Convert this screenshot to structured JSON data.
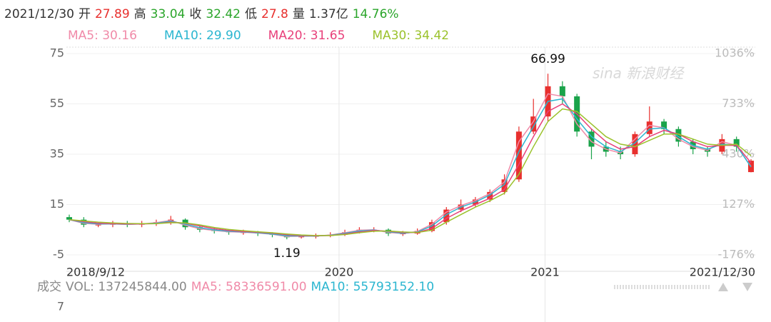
{
  "header": [
    {
      "text": "2021/12/30",
      "color": "#333333"
    },
    {
      "text": "开",
      "color": "#333333"
    },
    {
      "text": 27.89,
      "color": "#e8302e"
    },
    {
      "text": "高",
      "color": "#333333"
    },
    {
      "text": 33.04,
      "color": "#2aa52a"
    },
    {
      "text": "收",
      "color": "#333333"
    },
    {
      "text": 32.42,
      "color": "#2aa52a"
    },
    {
      "text": "低",
      "color": "#333333"
    },
    {
      "text": 27.8,
      "color": "#e8302e"
    },
    {
      "text": "量",
      "color": "#333333"
    },
    {
      "text": "1.37亿",
      "color": "#333333"
    },
    {
      "text": "14.76%",
      "color": "#2aa52a"
    }
  ],
  "chart_data": {
    "type": "candlestick",
    "watermark": "sina 新浪财经",
    "up_color": "#e8302e",
    "down_color": "#1aa34a",
    "xlim": [
      0,
      47
    ],
    "xticks": [
      {
        "value": 0,
        "label": "2018/9/12"
      },
      {
        "value": 18.6,
        "label": "2020"
      },
      {
        "value": 32.8,
        "label": "2021"
      },
      {
        "value": 47,
        "label": "2021/12/30"
      }
    ],
    "ylim": [
      -5,
      75
    ],
    "yticks": [
      -5,
      15,
      35,
      55,
      75
    ],
    "y2lim": [
      -176,
      1036
    ],
    "y2ticks": [
      {
        "value": -176,
        "label": "-176%"
      },
      {
        "value": 127,
        "label": "127%"
      },
      {
        "value": 430,
        "label": "430%"
      },
      {
        "value": 733,
        "label": "733%"
      },
      {
        "value": 1036,
        "label": "1036%"
      }
    ],
    "grid": true,
    "open": [
      10,
      9,
      7,
      7,
      7.5,
      7,
      7.5,
      8,
      9,
      6,
      5,
      4.5,
      4,
      4,
      3.5,
      3,
      2,
      2.5,
      2.5,
      3,
      4,
      5,
      5,
      3.5,
      3.5,
      4.5,
      8,
      13,
      15,
      17,
      20,
      25,
      44,
      50,
      62,
      58,
      44,
      38,
      36,
      35,
      43,
      48,
      45,
      40,
      37,
      36,
      41,
      27.89
    ],
    "high": [
      11,
      10,
      8,
      8.5,
      8.5,
      8.5,
      9,
      10.5,
      9.5,
      6.5,
      6,
      5,
      5,
      4.5,
      4,
      3.5,
      3,
      3.5,
      4,
      5,
      6,
      6,
      5.5,
      4.5,
      5.5,
      9,
      14,
      17,
      18,
      21,
      27,
      46,
      57,
      66.99,
      64,
      59,
      45,
      40,
      38,
      44,
      54,
      49,
      46,
      41,
      38,
      43,
      42,
      33.04
    ],
    "low": [
      8,
      6,
      6,
      6,
      6,
      6,
      6.5,
      7,
      5,
      4,
      3.5,
      3,
      3,
      2.5,
      2,
      1.19,
      1.5,
      1.5,
      2,
      2.5,
      3.5,
      4,
      2.5,
      2.5,
      3,
      4,
      7,
      12,
      14,
      16,
      19,
      24,
      43,
      48,
      55,
      42,
      33,
      34,
      33,
      34,
      42,
      43,
      38,
      35,
      34,
      35,
      36,
      27.8
    ],
    "close": [
      9,
      7,
      7,
      7.5,
      7,
      7.5,
      8,
      9,
      6,
      5,
      4.5,
      4,
      4,
      3.5,
      3,
      2,
      2.5,
      2.5,
      3,
      4,
      5,
      5,
      3.5,
      3.5,
      4.5,
      8,
      13,
      15,
      17,
      20,
      25,
      44,
      50,
      62,
      58,
      44,
      38,
      36,
      35,
      43,
      48,
      45,
      40,
      37,
      36,
      41,
      38,
      32.42
    ],
    "annotations": [
      66.99,
      1.19
    ],
    "series": [
      {
        "name": "MA5: 30.16",
        "color": "#f08aa8",
        "values": [
          9,
          7.5,
          7.2,
          7.3,
          7.1,
          7.3,
          7.8,
          8.7,
          6.8,
          5.4,
          4.7,
          4.2,
          4,
          3.7,
          3.2,
          2.3,
          2.4,
          2.5,
          2.9,
          3.8,
          4.8,
          5,
          3.9,
          3.5,
          4.3,
          7.2,
          12,
          14.6,
          16.6,
          19.4,
          24,
          40,
          48,
          59,
          58,
          47,
          40,
          37,
          35.5,
          41,
          46.5,
          45.5,
          41,
          38,
          36.5,
          40,
          38.5,
          30.16
        ]
      },
      {
        "name": "MA10: 29.90",
        "color": "#2bb6d0",
        "values": [
          9,
          7.8,
          7.3,
          7.3,
          7.2,
          7.3,
          7.6,
          8.4,
          7.2,
          5.8,
          4.9,
          4.4,
          4.1,
          3.8,
          3.3,
          2.6,
          2.5,
          2.5,
          2.8,
          3.6,
          4.5,
          4.9,
          4.2,
          3.6,
          4.1,
          6.5,
          11,
          14,
          16,
          18.8,
          23,
          36,
          46,
          56,
          57,
          49,
          42,
          38,
          36,
          39.5,
          45,
          45.5,
          42,
          38.5,
          37,
          39,
          38.5,
          29.9
        ]
      },
      {
        "name": "MA20: 31.65",
        "color": "#e8407a",
        "values": [
          9,
          8.2,
          7.6,
          7.4,
          7.3,
          7.3,
          7.4,
          8,
          7.6,
          6.5,
          5.4,
          4.7,
          4.3,
          4,
          3.6,
          3,
          2.7,
          2.6,
          2.7,
          3.3,
          4.1,
          4.7,
          4.4,
          3.9,
          3.9,
          5.5,
          9.5,
          12.5,
          15,
          17.5,
          21,
          31,
          42,
          52,
          55,
          51,
          45,
          40,
          37,
          38,
          42,
          44.5,
          43,
          40,
          38,
          38.5,
          38.5,
          31.65
        ]
      },
      {
        "name": "MA30: 34.42",
        "color": "#9bc22c",
        "values": [
          9,
          8.5,
          8,
          7.7,
          7.5,
          7.4,
          7.4,
          7.8,
          7.7,
          6.9,
          5.9,
          5.1,
          4.6,
          4.2,
          3.8,
          3.3,
          2.9,
          2.7,
          2.7,
          3.1,
          3.8,
          4.4,
          4.5,
          4.1,
          3.9,
          4.8,
          8,
          11,
          14,
          16.5,
          19.5,
          27,
          38,
          48,
          53,
          52,
          47,
          42,
          39,
          38,
          40.5,
          43,
          43,
          41,
          39,
          38.5,
          39,
          34.42
        ]
      }
    ]
  },
  "volume": {
    "legend": [
      {
        "text": "成交",
        "color": "#888888"
      },
      {
        "text": "VOL: 137245844.00",
        "color": "#888888"
      },
      {
        "text": "MA5: 58336591.00",
        "color": "#f08aa8"
      },
      {
        "text": "MA10: 55793152.10",
        "color": "#2bb6d0"
      }
    ],
    "tick": "7"
  }
}
